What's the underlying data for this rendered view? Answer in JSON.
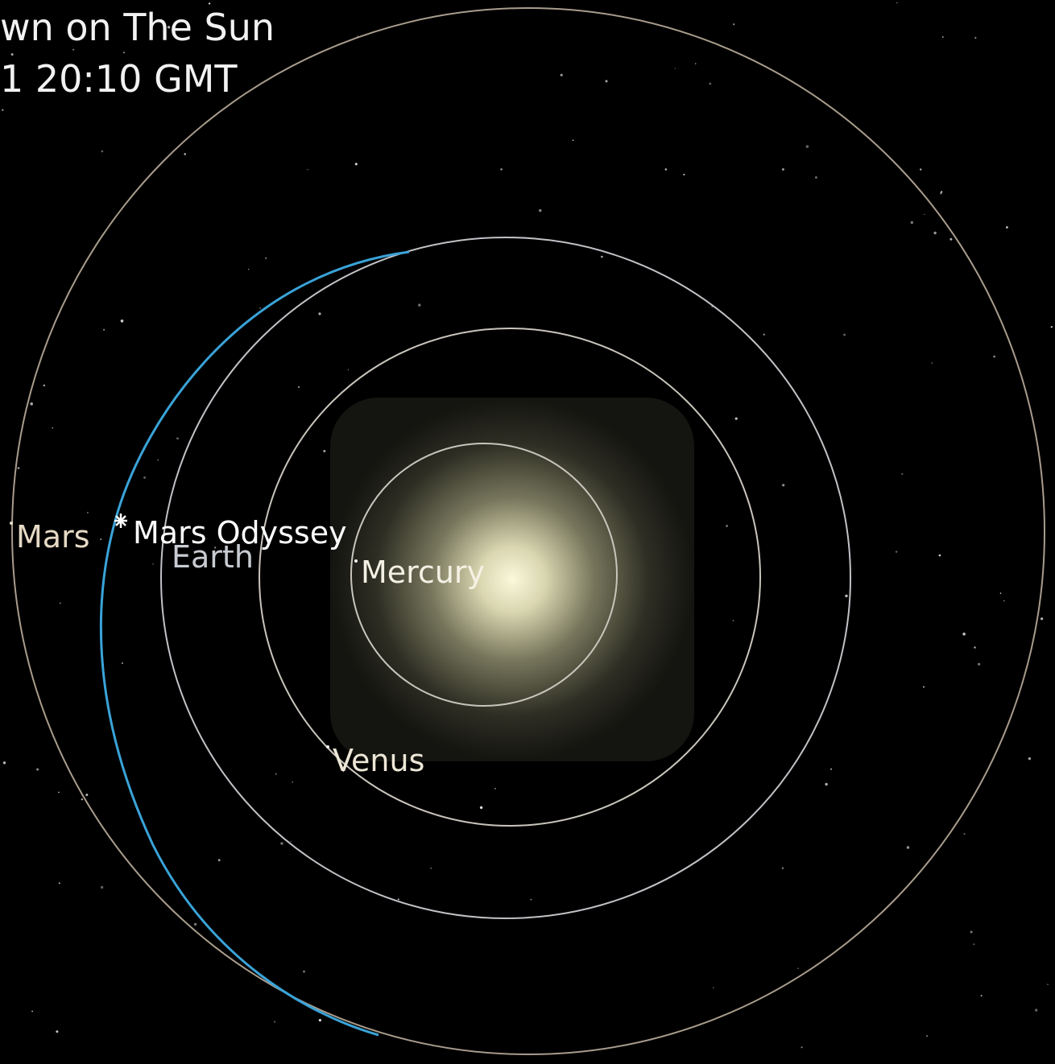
{
  "header": {
    "title_line1": "wn on The Sun",
    "title_line2": "1 20:10 GMT"
  },
  "labels": {
    "mars": "Mars",
    "mars_odyssey": "Mars Odyssey",
    "earth": "Earth",
    "mercury": "Mercury",
    "venus": "Venus"
  }
}
